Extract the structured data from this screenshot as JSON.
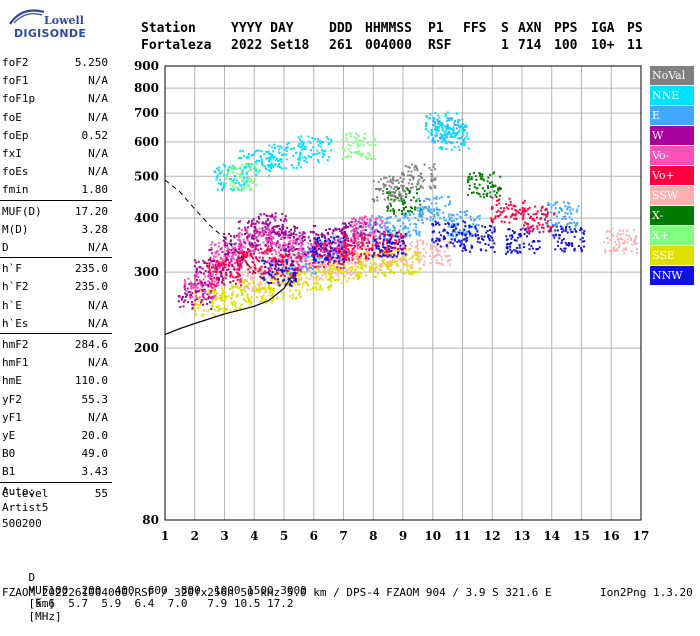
{
  "logo": {
    "line1": "Lowell",
    "line2": "DIGISONDE"
  },
  "header": {
    "labels": {
      "station": "Station",
      "date_fmt": "YYYY DAY",
      "doy": "DDD",
      "time": "HHMMSS",
      "p1": "P1",
      "ffs": "FFS",
      "s": "S",
      "axn": "AXN",
      "pps": "PPS",
      "iga": "IGA",
      "ps": "PS"
    },
    "values": {
      "station": "Fortaleza",
      "date": "2022 Set18",
      "doy": "261",
      "time": "004000",
      "p1": "RSF",
      "ffs": "",
      "s": "1",
      "axn": "714",
      "pps": "100",
      "iga": "10+",
      "ps": "11"
    }
  },
  "params": [
    {
      "name": "foF2",
      "value": "5.250"
    },
    {
      "name": "foF1",
      "value": "N/A"
    },
    {
      "name": "foF1p",
      "value": "N/A"
    },
    {
      "name": "foE",
      "value": "N/A"
    },
    {
      "name": "foEp",
      "value": "0.52"
    },
    {
      "name": "fxI",
      "value": "N/A"
    },
    {
      "name": "foEs",
      "value": "N/A"
    },
    {
      "name": "fmin",
      "value": "1.80"
    },
    {
      "name": "MUF(D)",
      "value": "17.20"
    },
    {
      "name": "M(D)",
      "value": "3.28"
    },
    {
      "name": "D",
      "value": "N/A"
    },
    {
      "name": "h`F",
      "value": "235.0"
    },
    {
      "name": "h`F2",
      "value": "235.0"
    },
    {
      "name": "h`E",
      "value": "N/A"
    },
    {
      "name": "h`Es",
      "value": "N/A"
    },
    {
      "name": "hmF2",
      "value": "284.6"
    },
    {
      "name": "hmF1",
      "value": "N/A"
    },
    {
      "name": "hmE",
      "value": "110.0"
    },
    {
      "name": "yF2",
      "value": "55.3"
    },
    {
      "name": "yF1",
      "value": "N/A"
    },
    {
      "name": "yE",
      "value": "20.0"
    },
    {
      "name": "B0",
      "value": "49.0"
    },
    {
      "name": "B1",
      "value": "3.43"
    },
    {
      "name": "C-level",
      "value": "55"
    }
  ],
  "auto": {
    "label": "Auto:",
    "program": "Artist5",
    "version": "500200"
  },
  "legend": [
    {
      "label": "NoVal",
      "color": "#808080"
    },
    {
      "label": "NNE",
      "color": "#00e0ff"
    },
    {
      "label": "E",
      "color": "#40a8ff"
    },
    {
      "label": "W",
      "color": "#a8009a"
    },
    {
      "label": "Vo-",
      "color": "#ff50b8"
    },
    {
      "label": "Vo+",
      "color": "#ff0040"
    },
    {
      "label": "SSW",
      "color": "#ffb0b0"
    },
    {
      "label": "X-",
      "color": "#007a00"
    },
    {
      "label": "X+",
      "color": "#80ff80"
    },
    {
      "label": "SSE",
      "color": "#e0e000"
    },
    {
      "label": "NNW",
      "color": "#1010e0"
    }
  ],
  "chart_data": {
    "type": "scatter",
    "title": "",
    "xlabel": "",
    "ylabel": "",
    "xlim": [
      1,
      17
    ],
    "ylim": [
      80,
      900
    ],
    "xticks": [
      1,
      2,
      3,
      4,
      5,
      6,
      7,
      8,
      9,
      10,
      11,
      12,
      13,
      14,
      15,
      16,
      17
    ],
    "yticks": [
      80,
      200,
      300,
      400,
      500,
      600,
      700,
      800,
      900
    ],
    "y_scale": "log",
    "grid": true,
    "legend_position": "right",
    "echo_clusters": [
      {
        "direction": "W",
        "points": [
          [
            2.0,
            265
          ],
          [
            2.5,
            300
          ],
          [
            3.0,
            320
          ],
          [
            3.5,
            345
          ],
          [
            4.0,
            370
          ],
          [
            4.5,
            385
          ],
          [
            5.0,
            360
          ],
          [
            5.5,
            350
          ],
          [
            6.5,
            360
          ],
          [
            7.5,
            370
          ]
        ]
      },
      {
        "direction": "Vo-",
        "points": [
          [
            2.2,
            280
          ],
          [
            3.0,
            330
          ],
          [
            4.0,
            355
          ],
          [
            5.0,
            340
          ],
          [
            6.0,
            330
          ],
          [
            7.0,
            340
          ],
          [
            7.8,
            380
          ]
        ]
      },
      {
        "direction": "Vo+",
        "points": [
          [
            3.0,
            300
          ],
          [
            4.0,
            320
          ],
          [
            5.0,
            310
          ],
          [
            6.5,
            330
          ],
          [
            7.5,
            345
          ],
          [
            8.5,
            350
          ],
          [
            12.5,
            420
          ],
          [
            13.5,
            400
          ]
        ]
      },
      {
        "direction": "SSW",
        "points": [
          [
            4.0,
            290
          ],
          [
            5.0,
            300
          ],
          [
            6.0,
            310
          ],
          [
            7.0,
            315
          ],
          [
            8.0,
            325
          ],
          [
            9.0,
            330
          ],
          [
            10.0,
            335
          ],
          [
            16.3,
            355
          ]
        ]
      },
      {
        "direction": "E",
        "points": [
          [
            5.5,
            320
          ],
          [
            6.5,
            340
          ],
          [
            8.0,
            380
          ],
          [
            9.0,
            390
          ],
          [
            10.0,
            420
          ],
          [
            10.5,
            640
          ],
          [
            11.0,
            390
          ],
          [
            14.3,
            410
          ]
        ]
      },
      {
        "direction": "NNE",
        "points": [
          [
            3.2,
            500
          ],
          [
            4.0,
            540
          ],
          [
            5.0,
            560
          ],
          [
            6.0,
            580
          ],
          [
            10.3,
            660
          ],
          [
            10.6,
            620
          ]
        ]
      },
      {
        "direction": "SSE",
        "points": [
          [
            2.5,
            255
          ],
          [
            3.0,
            262
          ],
          [
            4.0,
            270
          ],
          [
            5.0,
            280
          ],
          [
            6.0,
            292
          ],
          [
            7.0,
            305
          ],
          [
            8.0,
            315
          ],
          [
            9.0,
            320
          ]
        ]
      },
      {
        "direction": "NNW",
        "points": [
          [
            4.8,
            300
          ],
          [
            6.5,
            340
          ],
          [
            8.5,
            350
          ],
          [
            10.5,
            370
          ],
          [
            11.5,
            360
          ],
          [
            13.0,
            355
          ],
          [
            14.5,
            360
          ]
        ]
      },
      {
        "direction": "X+",
        "points": [
          [
            7.5,
            590
          ],
          [
            3.5,
            500
          ]
        ]
      },
      {
        "direction": "X-",
        "points": [
          [
            11.7,
            480
          ],
          [
            9.0,
            440
          ]
        ]
      },
      {
        "direction": "NoVal",
        "points": [
          [
            8.5,
            470
          ],
          [
            9.5,
            500
          ]
        ]
      }
    ],
    "trace_curve": [
      [
        1.0,
        215
      ],
      [
        1.5,
        222
      ],
      [
        2.0,
        228
      ],
      [
        3.0,
        240
      ],
      [
        4.0,
        250
      ],
      [
        4.5,
        258
      ],
      [
        5.0,
        275
      ],
      [
        5.25,
        292
      ]
    ],
    "dashed_curve": [
      [
        1.0,
        490
      ],
      [
        1.5,
        460
      ],
      [
        2.0,
        420
      ],
      [
        2.5,
        385
      ],
      [
        3.0,
        360
      ],
      [
        3.5,
        330
      ],
      [
        4.0,
        300
      ],
      [
        4.5,
        282
      ]
    ]
  },
  "bottom": {
    "d_label": "D",
    "d_values": [
      "100",
      "200",
      "400",
      "600",
      "800",
      "1000",
      "1500",
      "3000"
    ],
    "d_unit": "[km]",
    "muf_label": "MUF",
    "muf_values": [
      "5.6",
      "5.7",
      "5.9",
      "6.4",
      "7.0",
      "7.9",
      "10.5",
      "17.2"
    ],
    "muf_unit": "[MHz]",
    "footer": "FZAOM_2022261004000.RSF / 320fx256h 50 kHz 5.0 km / DPS-4 FZAOM 904 / 3.9 S 321.6 E",
    "version": "Ion2Png 1.3.20"
  }
}
